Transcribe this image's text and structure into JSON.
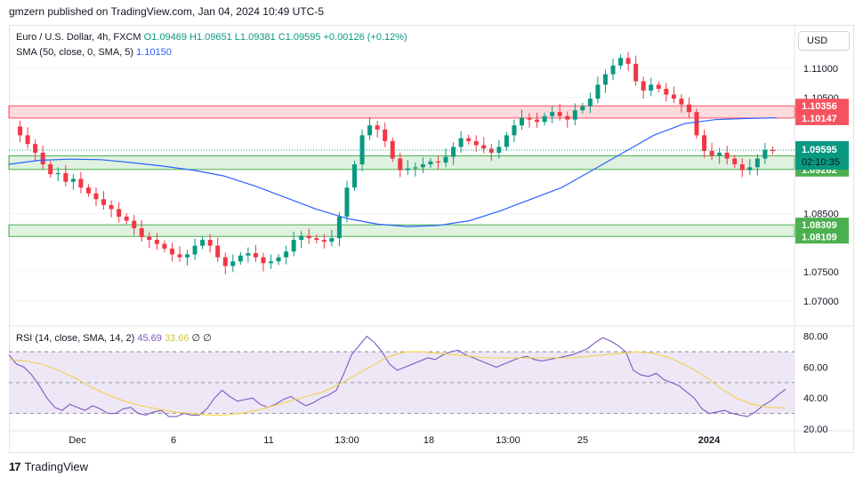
{
  "header": {
    "published": "gmzern published on TradingView.com, Jan 04, 2024 10:49 UTC-5"
  },
  "legend": {
    "symbol": "Euro / U.S. Dollar, 4h, FXCM",
    "ohlc": "O1.09469 H1.09651 L1.09381 C1.09595 +0.00126 (+0.12%)",
    "sma_label": "SMA (50, close, 0, SMA, 5)",
    "sma_value": "1.10150",
    "rsi_label": "RSI (14, close, SMA, 14, 2)",
    "rsi_value": "45.69",
    "rsi_sma_value": "33.66",
    "rsi_extra": "∅ ∅"
  },
  "currency_button": "USD",
  "footer": {
    "brand": "TradingView",
    "logo_glyph": "17"
  },
  "chart_data": [
    {
      "type": "candlestick",
      "title": "Euro / U.S. Dollar, 4h, FXCM",
      "ylim": [
        1.066,
        1.1175
      ],
      "y_ticks": [
        1.07,
        1.075,
        1.085,
        1.105,
        1.11
      ],
      "x_tick_labels": [
        "Dec",
        "6",
        "11",
        "13:00",
        "18",
        "13:00",
        "25",
        "2024"
      ],
      "close_path": [
        1.1,
        1.0985,
        1.097,
        1.0955,
        1.0935,
        1.0918,
        1.092,
        1.0905,
        1.091,
        1.0895,
        1.0885,
        1.0875,
        1.0865,
        1.0858,
        1.0845,
        1.0838,
        1.0825,
        1.081,
        1.0805,
        1.0798,
        1.079,
        1.078,
        1.0775,
        1.078,
        1.0795,
        1.0805,
        1.0795,
        1.0775,
        1.076,
        1.0768,
        1.0778,
        1.0782,
        1.0775,
        1.0765,
        1.0768,
        1.0775,
        1.0785,
        1.0805,
        1.0812,
        1.0808,
        1.0805,
        1.0802,
        1.0808,
        1.0845,
        1.0895,
        1.0935,
        1.0985,
        1.1002,
        1.0995,
        1.0975,
        1.0945,
        1.0925,
        1.0928,
        1.093,
        1.0935,
        1.094,
        1.0938,
        1.0948,
        1.0965,
        1.098,
        1.0975,
        1.0968,
        1.0962,
        1.0955,
        1.0965,
        1.0985,
        1.1002,
        1.1015,
        1.1012,
        1.1008,
        1.1018,
        1.1025,
        1.1018,
        1.1012,
        1.1028,
        1.1035,
        1.1048,
        1.1072,
        1.109,
        1.1105,
        1.1118,
        1.1108,
        1.1078,
        1.1062,
        1.1072,
        1.1065,
        1.1055,
        1.1048,
        1.1038,
        1.1025,
        1.0985,
        1.0958,
        1.095,
        1.0955,
        1.0945,
        1.0935,
        1.0925,
        1.093,
        1.0945,
        1.096,
        1.0958
      ],
      "sma50_path": [
        1.0935,
        1.0942,
        1.0944,
        1.0943,
        1.0938,
        1.0932,
        1.0925,
        1.0915,
        1.0898,
        1.0878,
        1.0858,
        1.0842,
        1.0832,
        1.0828,
        1.083,
        1.0838,
        1.0855,
        1.0875,
        1.0895,
        1.0925,
        1.0955,
        1.0985,
        1.1005,
        1.1012,
        1.1014,
        1.1015
      ],
      "last_close": "1.09595",
      "countdown": "02:10:35",
      "zones": [
        {
          "kind": "resistance",
          "upper": "1.10356",
          "lower": "1.10147",
          "color": "#f7525f"
        },
        {
          "kind": "support",
          "upper": "1.09496",
          "lower": "1.09262",
          "color": "#4caf50"
        },
        {
          "kind": "support",
          "upper": "1.08309",
          "lower": "1.08109",
          "color": "#4caf50"
        }
      ],
      "colors": {
        "up": "#089981",
        "down": "#f23645",
        "sma": "#2962ff"
      }
    },
    {
      "type": "line",
      "title": "RSI (14, close, SMA, 14, 2)",
      "ylim": [
        20,
        85
      ],
      "y_ticks": [
        20,
        40,
        60,
        80
      ],
      "levels": [
        70,
        50,
        30
      ],
      "rsi": [
        68,
        62,
        60,
        55,
        48,
        40,
        34,
        32,
        36,
        34,
        32,
        35,
        33,
        30,
        30,
        33,
        34,
        30,
        29,
        31,
        32,
        28,
        28,
        30,
        29,
        29,
        33,
        40,
        45,
        41,
        38,
        39,
        40,
        36,
        34,
        36,
        39,
        41,
        38,
        35,
        37,
        40,
        42,
        45,
        56,
        68,
        74,
        80,
        76,
        70,
        62,
        58,
        60,
        62,
        64,
        66,
        65,
        68,
        70,
        71,
        68,
        66,
        64,
        62,
        60,
        62,
        64,
        66,
        67,
        65,
        64,
        65,
        66,
        67,
        68,
        70,
        72,
        76,
        79,
        77,
        74,
        70,
        58,
        55,
        54,
        56,
        52,
        50,
        48,
        44,
        40,
        33,
        30,
        31,
        32,
        30,
        29,
        28,
        31,
        35,
        38,
        42,
        45.69
      ],
      "rsi_sma": [
        65,
        64,
        62,
        58,
        53,
        47,
        42,
        38,
        35,
        33,
        31,
        30,
        29,
        29,
        30,
        32,
        35,
        38,
        41,
        44,
        49,
        55,
        61,
        67,
        70,
        70,
        69,
        68,
        67,
        66,
        66,
        66,
        66,
        66,
        66,
        67,
        68,
        69,
        70,
        69,
        66,
        61,
        55,
        47,
        40,
        36,
        34,
        33.66
      ],
      "colors": {
        "rsi": "#7e57c2",
        "rsi_sma": "#f5d24b",
        "band": "#ede7f6"
      }
    }
  ]
}
